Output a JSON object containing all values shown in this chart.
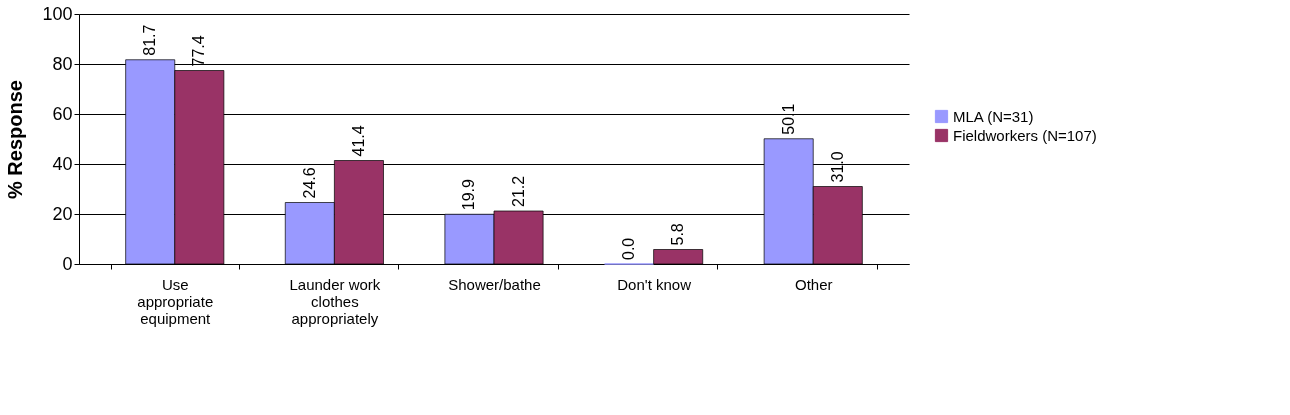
{
  "chart_data": {
    "type": "bar",
    "ylabel": "% Response",
    "categories": [
      "Use appropriate equipment",
      "Launder work clothes appropriately",
      "Shower/bathe",
      "Don't know",
      "Other"
    ],
    "series": [
      {
        "name": "MLA (N=31)",
        "color": "#9999ff",
        "values": [
          81.7,
          24.6,
          19.9,
          0.0,
          50.1
        ],
        "value_labels": [
          "81.7",
          "24.6",
          "19.9",
          "0.0",
          "50.1"
        ]
      },
      {
        "name": "Fieldworkers (N=107)",
        "color": "#993366",
        "values": [
          77.4,
          41.4,
          21.2,
          5.8,
          31.0
        ],
        "value_labels": [
          "77.4",
          "41.4",
          "21.2",
          "5.8",
          "31.0"
        ]
      }
    ],
    "ylim": [
      0,
      100
    ],
    "yticks": [
      0,
      20,
      40,
      60,
      80,
      100
    ],
    "grid": "y",
    "legend": "right"
  }
}
